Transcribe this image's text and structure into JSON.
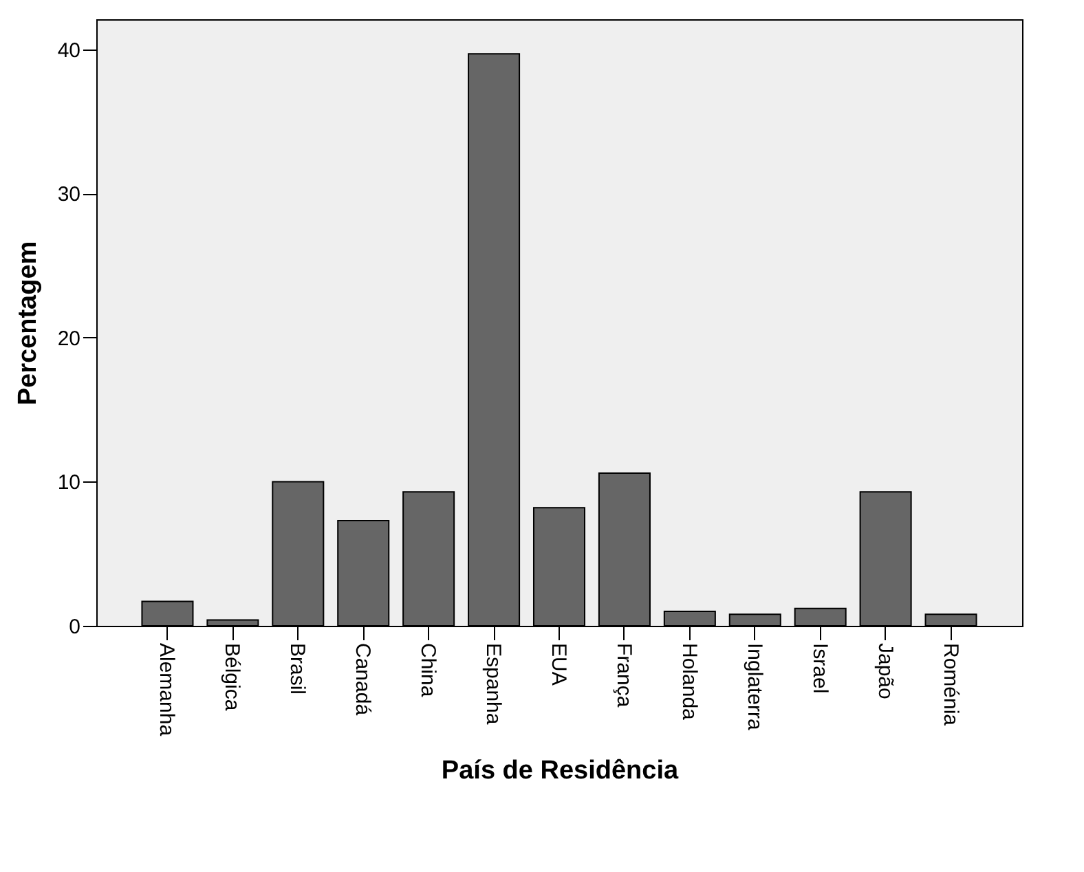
{
  "chart_data": {
    "type": "bar",
    "xlabel": "País de Residência",
    "ylabel": "Percentagem",
    "categories": [
      "Alemanha",
      "Bélgica",
      "Brasil",
      "Canadá",
      "China",
      "Espanha",
      "EUA",
      "França",
      "Holanda",
      "Inglaterra",
      "Israel",
      "Japão",
      "Roménia"
    ],
    "values": [
      1.7,
      0.4,
      10.0,
      7.3,
      9.3,
      39.7,
      8.2,
      10.6,
      1.0,
      0.8,
      1.2,
      9.3,
      0.8
    ],
    "color": "#666666",
    "ylim": [
      0,
      42.1
    ],
    "yticks": [
      0,
      10,
      20,
      30,
      40
    ],
    "grid": false
  }
}
